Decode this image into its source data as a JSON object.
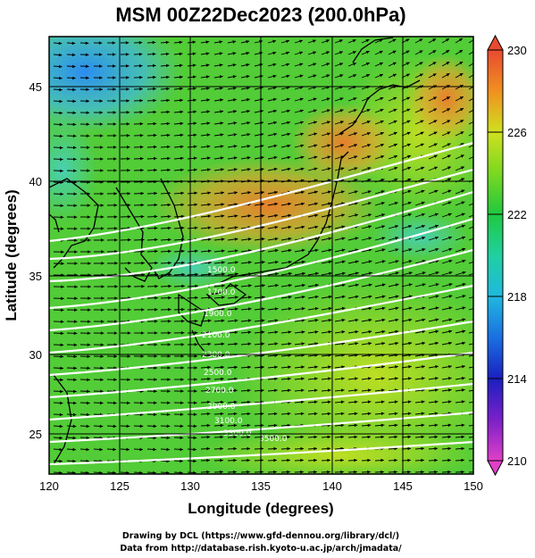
{
  "title": "MSM 00Z22Dec2023 (200.0hPa)",
  "axes": {
    "xlabel": "Longitude (degrees)",
    "ylabel": "Latitude  (degrees)",
    "xticks": [
      "120",
      "125",
      "130",
      "135",
      "140",
      "145",
      "150"
    ],
    "yticks": [
      "45",
      "40",
      "35",
      "30",
      "25"
    ]
  },
  "colorbar": {
    "ticks": [
      "230",
      "226",
      "222",
      "218",
      "214",
      "210"
    ],
    "min": 210,
    "max": 230
  },
  "contour_labels": [
    "1500.0",
    "1700.0",
    "1900.0",
    "2100.0",
    "2300.0",
    "2500.0",
    "2700.0",
    "2900.0",
    "3100.0",
    "3300.0",
    "3500.0"
  ],
  "credits": {
    "line1": "Drawing by DCL (https://www.gfd-dennou.org/library/dcl/)",
    "line2": "Data from http://database.rish.kyoto-u.ac.jp/arch/jmadata/"
  },
  "chart_data": {
    "type": "heatmap",
    "title": "MSM 00Z22Dec2023 (200.0hPa)",
    "xlabel": "Longitude (degrees)",
    "ylabel": "Latitude  (degrees)",
    "xlim": [
      120,
      150
    ],
    "ylim": [
      22.5,
      47.6
    ],
    "xticks": [
      120,
      125,
      130,
      135,
      140,
      145,
      150
    ],
    "yticks": [
      25,
      30,
      35,
      40,
      45
    ],
    "colorbar_range": [
      210,
      230
    ],
    "colorbar_ticks": [
      210,
      214,
      218,
      222,
      226,
      230
    ],
    "overlays": [
      "wind vectors",
      "white contour lines",
      "coastlines",
      "grid"
    ],
    "grid": true
  }
}
